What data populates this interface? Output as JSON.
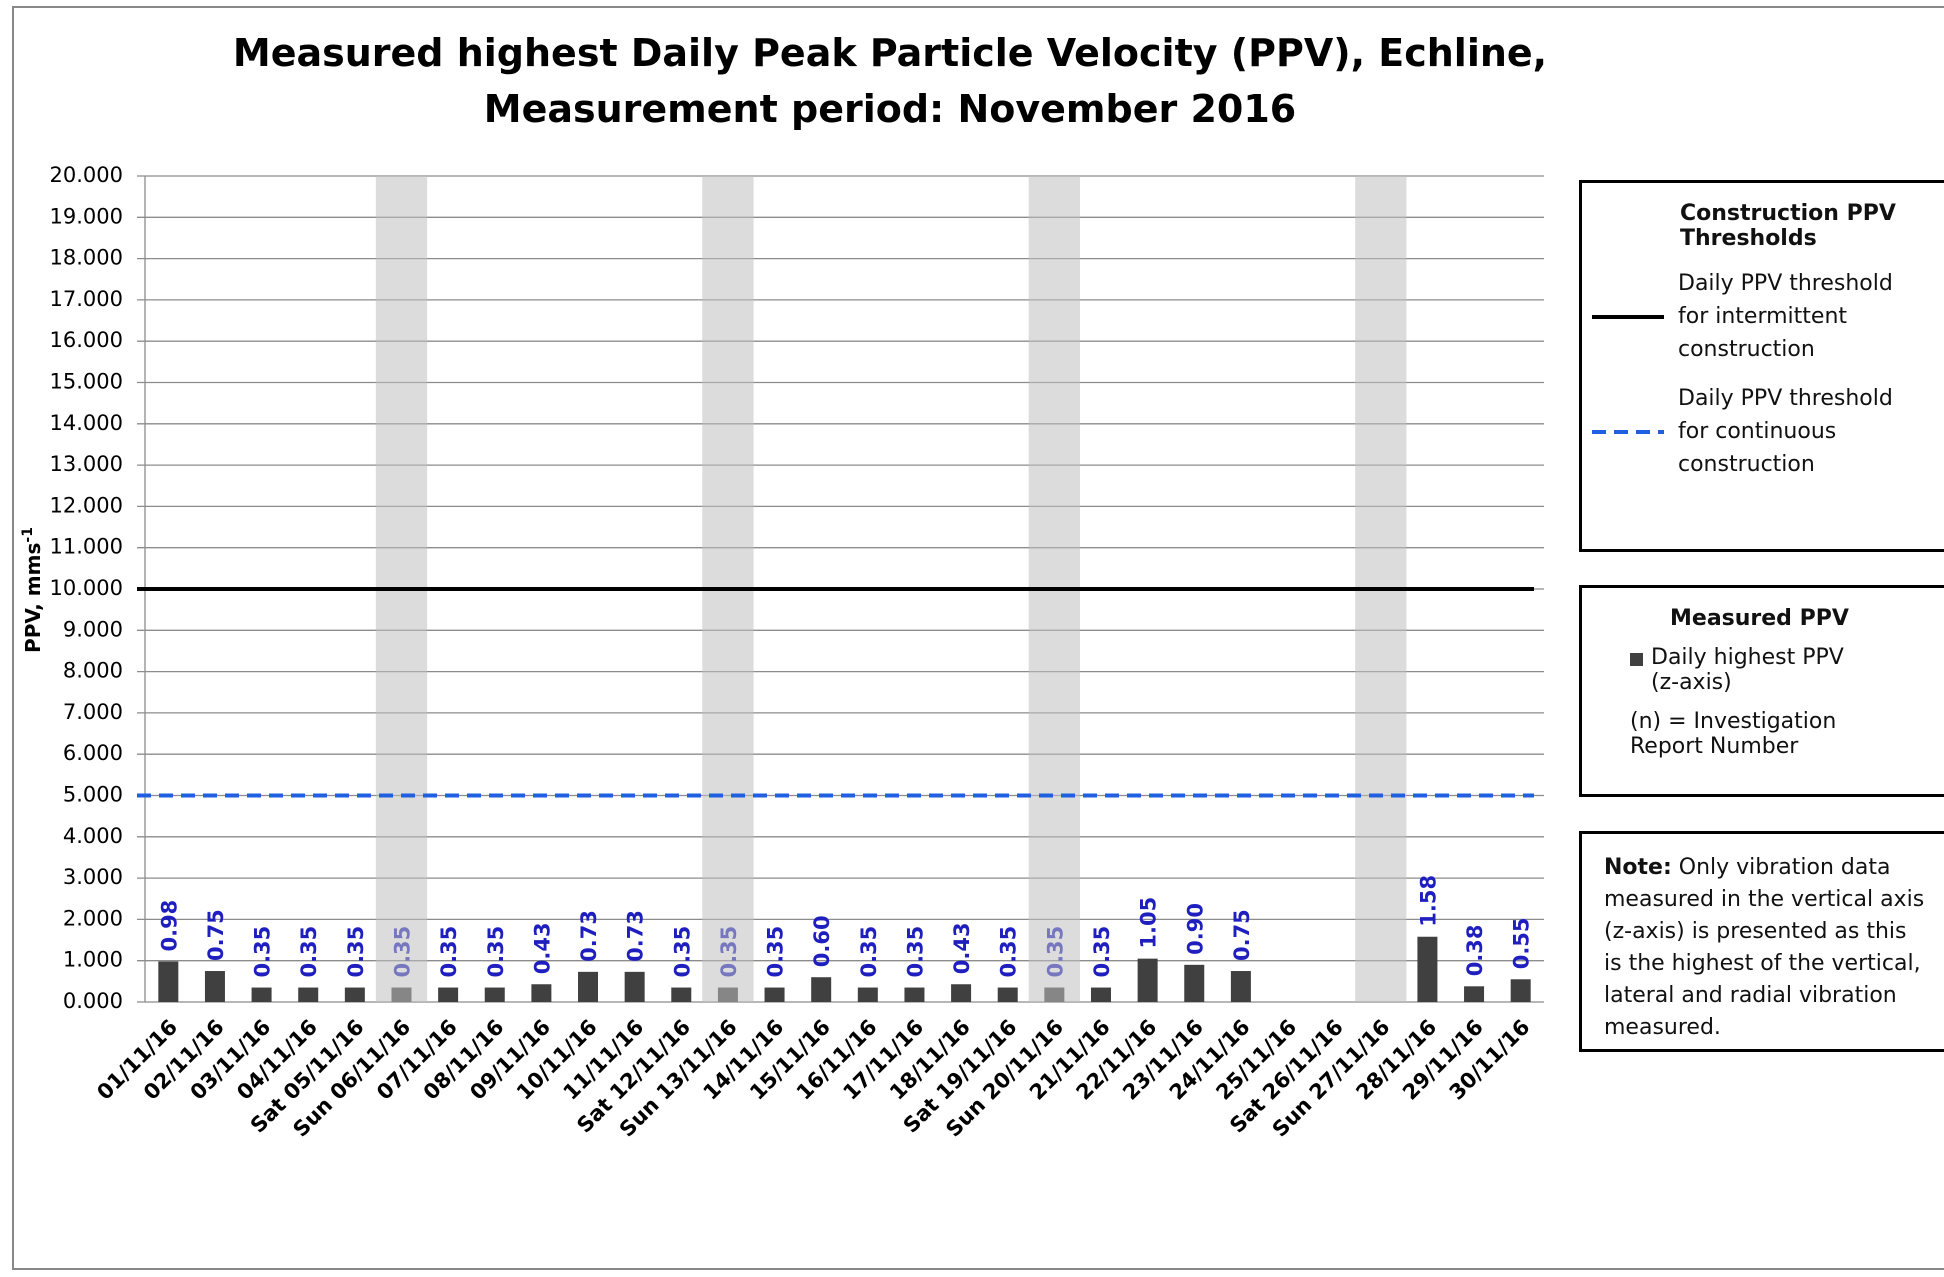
{
  "chart_data": {
    "type": "bar",
    "title": "Measured highest Daily Peak Particle Velocity (PPV), Echline, Measurement period: November 2016",
    "y_label": "PPV, mms",
    "y_label_superscript": "-1",
    "categories": [
      "01/11/16",
      "02/11/16",
      "03/11/16",
      "04/11/16",
      "Sat 05/11/16",
      "Sun 06/11/16",
      "07/11/16",
      "08/11/16",
      "09/11/16",
      "10/11/16",
      "11/11/16",
      "Sat 12/11/16",
      "Sun 13/11/16",
      "14/11/16",
      "15/11/16",
      "16/11/16",
      "17/11/16",
      "18/11/16",
      "Sat 19/11/16",
      "Sun 20/11/16",
      "21/11/16",
      "22/11/16",
      "23/11/16",
      "24/11/16",
      "25/11/16",
      "Sat 26/11/16",
      "Sun 27/11/16",
      "28/11/16",
      "29/11/16",
      "30/11/16"
    ],
    "series": [
      {
        "name": "Daily highest PPV (z-axis)",
        "color": "#404040",
        "values": [
          0.98,
          0.75,
          0.35,
          0.35,
          0.35,
          0.35,
          0.35,
          0.35,
          0.43,
          0.73,
          0.73,
          0.35,
          0.35,
          0.35,
          0.6,
          0.35,
          0.35,
          0.43,
          0.35,
          0.35,
          0.35,
          1.05,
          0.9,
          0.75,
          null,
          null,
          null,
          1.58,
          0.38,
          0.55
        ],
        "value_labels": [
          "0.98",
          "0.75",
          "0.35",
          "0.35",
          "0.35",
          "0.35",
          "0.35",
          "0.35",
          "0.43",
          "0.73",
          "0.73",
          "0.35",
          "0.35",
          "0.35",
          "0.60",
          "0.35",
          "0.35",
          "0.43",
          "0.35",
          "0.35",
          "0.35",
          "1.05",
          "0.90",
          "0.75",
          null,
          null,
          null,
          "1.58",
          "0.38",
          "0.55"
        ],
        "label_color": "#1f1fbf"
      },
      {
        "color": "#c0c0c0",
        "values": [
          null,
          null,
          null,
          null,
          null,
          20,
          null,
          null,
          null,
          null,
          null,
          null,
          20,
          null,
          null,
          null,
          null,
          null,
          null,
          20,
          null,
          null,
          null,
          null,
          null,
          null,
          20,
          null,
          null,
          null
        ]
      }
    ],
    "thresholds": [
      {
        "name": "Daily PPV threshold for intermittent construction",
        "value": 10,
        "color": "#000000",
        "dashed": false
      },
      {
        "name": "Daily PPV threshold for continuous construction",
        "value": 5,
        "color": "#1f5fe0",
        "dashed": true
      }
    ],
    "legend_titles": [
      "Construction PPV Thresholds",
      "Measured PPV"
    ],
    "legend_note": "(n) = Investigation Report Number",
    "note_heading": "Note:",
    "note": "Only vibration data measured in the vertical axis (z-axis) is presented as this is the highest of the vertical, lateral and radial vibration measured.",
    "ylim": [
      0,
      20
    ],
    "yticks": [
      {
        "value": 0,
        "label": "0.000"
      },
      {
        "value": 1,
        "label": "1.000"
      },
      {
        "value": 2,
        "label": "2.000"
      },
      {
        "value": 3,
        "label": "3.000"
      },
      {
        "value": 4,
        "label": "4.000"
      },
      {
        "value": 5,
        "label": "5.000"
      },
      {
        "value": 6,
        "label": "6.000"
      },
      {
        "value": 7,
        "label": "7.000"
      },
      {
        "value": 8,
        "label": "8.000"
      },
      {
        "value": 9,
        "label": "9.000"
      },
      {
        "value": 10,
        "label": "10.000"
      },
      {
        "value": 11,
        "label": "11.000"
      },
      {
        "value": 12,
        "label": "12.000"
      },
      {
        "value": 13,
        "label": "13.000"
      },
      {
        "value": 14,
        "label": "14.000"
      },
      {
        "value": 15,
        "label": "15.000"
      },
      {
        "value": 16,
        "label": "16.000"
      },
      {
        "value": 17,
        "label": "17.000"
      },
      {
        "value": 18,
        "label": "18.000"
      },
      {
        "value": 19,
        "label": "19.000"
      },
      {
        "value": 20,
        "label": "20.000"
      }
    ],
    "grid": true
  }
}
